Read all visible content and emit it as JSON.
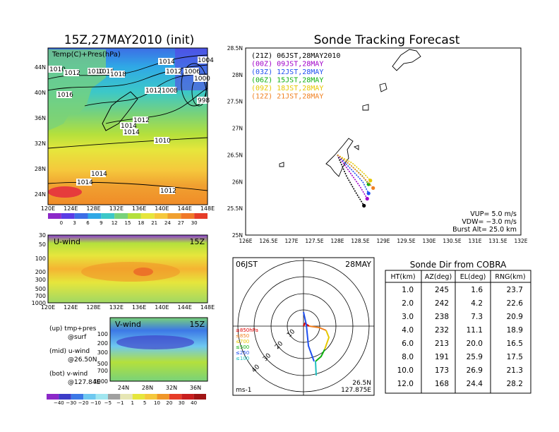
{
  "left_title": "15Z,27MAY2010 (init)",
  "right_title": "Sonde Tracking Forecast",
  "map_panel": {
    "label": "Temp(C)+Pres(hPa)",
    "x_ticks": [
      "120E",
      "124E",
      "128E",
      "132E",
      "136E",
      "140E",
      "144E",
      "148E"
    ],
    "y_ticks": [
      "24N",
      "28N",
      "32N",
      "36N",
      "40N",
      "44N"
    ],
    "isobar_labels": [
      "1010",
      "1012",
      "1016",
      "1018",
      "1014",
      "1012",
      "1014",
      "1014",
      "1006",
      "1008",
      "1000",
      "1012",
      "1010",
      "998",
      "1016",
      "1014",
      "1012",
      "1014",
      "1012",
      "1010",
      "1004"
    ],
    "colorbar": [
      "0",
      "3",
      "6",
      "9",
      "12",
      "15",
      "18",
      "21",
      "24",
      "27",
      "30"
    ]
  },
  "u_panel": {
    "label": "U-wind",
    "time": "15Z",
    "y_ticks": [
      "30",
      "50",
      "100",
      "200",
      "300",
      "500",
      "700",
      "1000"
    ],
    "x_ticks": [
      "120E",
      "124E",
      "128E",
      "132E",
      "136E",
      "140E",
      "144E",
      "148E"
    ]
  },
  "v_panel": {
    "label": "V-wind",
    "time": "15Z",
    "y_ticks": [
      "100",
      "200",
      "300",
      "500",
      "700",
      "1000"
    ],
    "x_ticks": [
      "24N",
      "28N",
      "32N",
      "36N"
    ],
    "colorbar": [
      "−40",
      "−30",
      "−20",
      "−10",
      "−5",
      "−1",
      "1",
      "5",
      "10",
      "20",
      "30",
      "40"
    ]
  },
  "legend_notes": [
    {
      "a": "(up) tmp+pres",
      "b": "@surf"
    },
    {
      "a": "(mid) u-wind",
      "b": "@26.50N"
    },
    {
      "a": "(bot) v-wind",
      "b": "@127.84E"
    }
  ],
  "track_panel": {
    "legend": [
      {
        "text": "(21Z) 06JST,28MAY2010",
        "color": "#000000"
      },
      {
        "text": "(00Z) 09JST,28MAY",
        "color": "#a000c8"
      },
      {
        "text": "(03Z) 12JST,28MAY",
        "color": "#2050f0"
      },
      {
        "text": "(06Z) 15JST,28MAY",
        "color": "#10b010"
      },
      {
        "text": "(09Z) 18JST,28MAY",
        "color": "#e6c800"
      },
      {
        "text": "(12Z) 21JST,28MAY",
        "color": "#f08020"
      }
    ],
    "params": [
      "VUP= 5.0 m/s",
      "VDW= −3.0 m/s",
      "Burst Alt= 25.0 km"
    ],
    "x_ticks": [
      "126E",
      "126.5E",
      "127E",
      "127.5E",
      "128E",
      "128.5E",
      "129E",
      "129.5E",
      "130E",
      "130.5E",
      "131E",
      "131.5E",
      "132E"
    ],
    "y_ticks": [
      "25N",
      "25.5N",
      "26N",
      "26.5N",
      "27N",
      "27.5N",
      "28N",
      "28.5N"
    ]
  },
  "polar_panel": {
    "time": "06JST",
    "date": "28MAY",
    "ring_labels": [
      "10",
      "20",
      "30",
      "40"
    ],
    "units": "ms-1",
    "location_lat": "26.5N",
    "location_lon": "127.875E",
    "levels": [
      {
        "text": "≥850hPa",
        "color": "#e00000"
      },
      {
        "text": "≤850",
        "color": "#f08020"
      },
      {
        "text": "≤700",
        "color": "#e6c800"
      },
      {
        "text": "≤500",
        "color": "#10b010"
      },
      {
        "text": "≤250",
        "color": "#2050f0"
      },
      {
        "text": "≤100",
        "color": "#20c0c0"
      }
    ]
  },
  "table": {
    "title": "Sonde Dir from COBRA",
    "headers": [
      "HT(km)",
      "AZ(deg)",
      "EL(deg)",
      "RNG(km)"
    ],
    "rows": [
      [
        "1.0",
        "245",
        "1.6",
        "23.7"
      ],
      [
        "2.0",
        "242",
        "4.2",
        "22.6"
      ],
      [
        "3.0",
        "238",
        "7.3",
        "20.9"
      ],
      [
        "4.0",
        "232",
        "11.1",
        "18.9"
      ],
      [
        "6.0",
        "213",
        "20.0",
        "16.5"
      ],
      [
        "8.0",
        "191",
        "25.9",
        "17.5"
      ],
      [
        "10.0",
        "173",
        "26.9",
        "21.3"
      ],
      [
        "12.0",
        "168",
        "24.4",
        "28.2"
      ]
    ]
  },
  "chart_data": {
    "type": "table",
    "title": "Sonde Dir from COBRA",
    "columns": [
      "HT(km)",
      "AZ(deg)",
      "EL(deg)",
      "RNG(km)"
    ],
    "rows": [
      [
        1.0,
        245,
        1.6,
        23.7
      ],
      [
        2.0,
        242,
        4.2,
        22.6
      ],
      [
        3.0,
        238,
        7.3,
        20.9
      ],
      [
        4.0,
        232,
        11.1,
        18.9
      ],
      [
        6.0,
        213,
        20.0,
        16.5
      ],
      [
        8.0,
        191,
        25.9,
        17.5
      ],
      [
        10.0,
        173,
        26.9,
        21.3
      ],
      [
        12.0,
        168,
        24.4,
        28.2
      ]
    ],
    "track_axes": {
      "xlim": [
        126,
        132
      ],
      "ylim": [
        25,
        28.5
      ]
    },
    "track_series": [
      {
        "color": "#000000",
        "points": [
          [
            128.0,
            26.5
          ],
          [
            128.2,
            26.1
          ],
          [
            128.4,
            25.8
          ],
          [
            128.58,
            25.55
          ]
        ]
      },
      {
        "color": "#a000c8",
        "points": [
          [
            128.0,
            26.5
          ],
          [
            128.25,
            26.2
          ],
          [
            128.5,
            25.9
          ],
          [
            128.65,
            25.68
          ]
        ]
      },
      {
        "color": "#2050f0",
        "points": [
          [
            128.0,
            26.5
          ],
          [
            128.28,
            26.25
          ],
          [
            128.55,
            26.0
          ],
          [
            128.68,
            25.78
          ]
        ]
      },
      {
        "color": "#10b010",
        "points": [
          [
            128.0,
            26.5
          ],
          [
            128.3,
            26.3
          ],
          [
            128.55,
            26.1
          ],
          [
            128.68,
            25.95
          ]
        ]
      },
      {
        "color": "#e6c800",
        "points": [
          [
            128.0,
            26.5
          ],
          [
            128.32,
            26.35
          ],
          [
            128.58,
            26.15
          ],
          [
            128.72,
            26.02
          ]
        ]
      },
      {
        "color": "#f08020",
        "points": [
          [
            128.0,
            26.5
          ],
          [
            128.3,
            26.3
          ],
          [
            128.6,
            26.05
          ],
          [
            128.78,
            25.88
          ]
        ]
      }
    ]
  }
}
